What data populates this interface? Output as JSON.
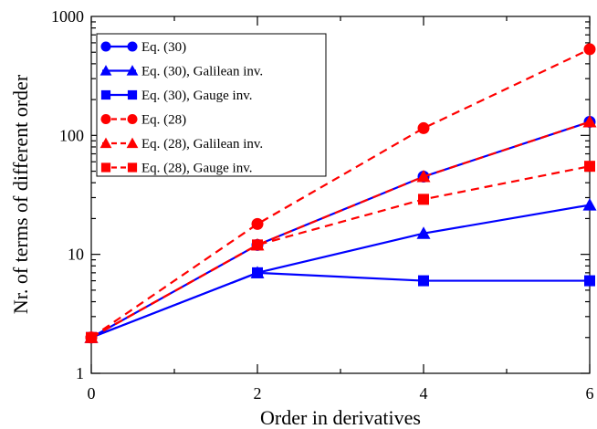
{
  "chart_data": {
    "type": "line",
    "xlabel": "Order in derivatives",
    "ylabel": "Nr. of terms of different order",
    "x_scale": "linear",
    "y_scale": "log",
    "xlim": [
      0,
      6
    ],
    "ylim": [
      1,
      1000
    ],
    "x_ticks": [
      "0",
      "2",
      "4",
      "6"
    ],
    "y_ticks": [
      "1",
      "10",
      "100",
      "1000"
    ],
    "grid": false,
    "legend_position": "top-left",
    "x": [
      0,
      2,
      4,
      6
    ],
    "series": [
      {
        "name": "Eq. (30)",
        "color": "#0000ff",
        "line_style": "solid",
        "marker": "circle",
        "values": [
          2,
          12,
          45,
          130
        ]
      },
      {
        "name": "Eq. (30), Galilean inv.",
        "color": "#0000ff",
        "line_style": "solid",
        "marker": "triangle",
        "values": [
          2,
          7,
          15,
          26
        ]
      },
      {
        "name": "Eq. (30), Gauge inv.",
        "color": "#0000ff",
        "line_style": "solid",
        "marker": "square",
        "values": [
          2,
          7,
          6,
          6
        ]
      },
      {
        "name": "Eq. (28)",
        "color": "#ff0000",
        "line_style": "dashed",
        "marker": "circle",
        "values": [
          2,
          18,
          115,
          530
        ]
      },
      {
        "name": "Eq. (28), Galilean inv.",
        "color": "#ff0000",
        "line_style": "dashed",
        "marker": "triangle",
        "values": [
          2,
          12,
          45,
          130
        ]
      },
      {
        "name": "Eq. (28), Gauge inv.",
        "color": "#ff0000",
        "line_style": "dashed",
        "marker": "square",
        "values": [
          2,
          12,
          29,
          55
        ]
      }
    ]
  }
}
